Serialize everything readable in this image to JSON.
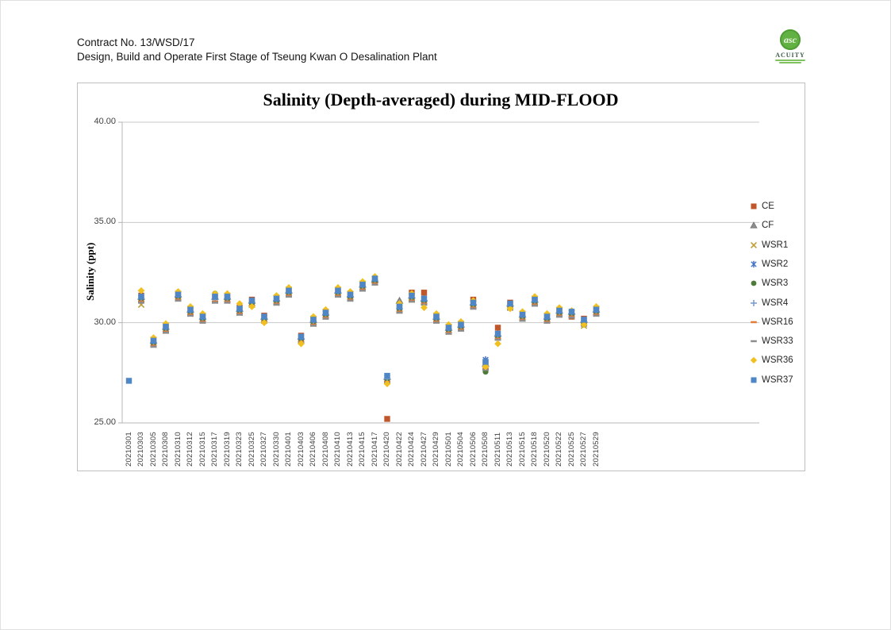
{
  "header": {
    "contract_line": "Contract No. 13/WSD/17",
    "project_line": "Design, Build and Operate First Stage of Tseung Kwan O Desalination Plant"
  },
  "logo": {
    "brand": "ACUITY",
    "monogram": "asc",
    "brand_color": "#62b143"
  },
  "chart_data": {
    "type": "scatter",
    "title": "Salinity (Depth-averaged) during MID-FLOOD",
    "ylabel": "Salinity (ppt)",
    "ylim": [
      25,
      40
    ],
    "yticks": [
      40,
      35,
      30,
      25
    ],
    "ytick_labels": [
      "40.00",
      "35.00",
      "30.00",
      "25.00"
    ],
    "grid": "horizontal",
    "legend_position": "right",
    "categories": [
      "20210301",
      "20210303",
      "20210305",
      "20210308",
      "20210310",
      "20210312",
      "20210315",
      "20210317",
      "20210319",
      "20210323",
      "20210325",
      "20210327",
      "20210330",
      "20210401",
      "20210403",
      "20210406",
      "20210408",
      "20210410",
      "20210413",
      "20210415",
      "20210417",
      "20210420",
      "20210422",
      "20210424",
      "20210427",
      "20210429",
      "20210501",
      "20210504",
      "20210506",
      "20210508",
      "20210511",
      "20210513",
      "20210515",
      "20210518",
      "20210520",
      "20210522",
      "20210525",
      "20210527",
      "20210529"
    ],
    "series": [
      {
        "name": "CE",
        "marker": "square",
        "color": "#c0572b",
        "values": [
          null,
          31.35,
          29.15,
          29.85,
          31.45,
          30.7,
          30.35,
          31.35,
          31.35,
          30.75,
          31.15,
          30.35,
          31.25,
          31.65,
          29.35,
          30.2,
          30.55,
          31.65,
          31.45,
          31.95,
          32.1,
          25.2,
          30.85,
          31.5,
          31.5,
          30.35,
          29.8,
          29.95,
          31.15,
          28.0,
          29.75,
          31.0,
          30.45,
          31.2,
          30.35,
          30.65,
          30.3,
          30.2,
          30.7
        ]
      },
      {
        "name": "CF",
        "marker": "triangle",
        "color": "#8c8c8c",
        "values": [
          null,
          31.3,
          29.1,
          29.8,
          31.4,
          30.65,
          30.3,
          31.3,
          31.3,
          30.7,
          31.1,
          30.3,
          31.2,
          31.6,
          29.3,
          30.15,
          30.5,
          31.6,
          31.4,
          31.9,
          32.15,
          27.3,
          31.1,
          31.35,
          31.2,
          30.3,
          29.75,
          29.9,
          31.0,
          27.95,
          29.45,
          30.95,
          30.4,
          31.15,
          30.3,
          30.6,
          30.55,
          30.15,
          30.65
        ]
      },
      {
        "name": "WSR1",
        "marker": "x",
        "color": "#bd9e39",
        "values": [
          null,
          30.9,
          28.9,
          29.6,
          31.2,
          30.45,
          30.1,
          31.1,
          31.1,
          30.5,
          30.9,
          30.1,
          31.0,
          31.4,
          29.1,
          29.95,
          30.3,
          31.4,
          31.2,
          31.7,
          32.0,
          27.1,
          30.6,
          31.15,
          31.0,
          30.1,
          29.55,
          29.7,
          30.8,
          27.75,
          29.25,
          30.75,
          30.2,
          30.95,
          30.1,
          30.4,
          30.35,
          29.85,
          30.45
        ]
      },
      {
        "name": "WSR2",
        "marker": "star",
        "color": "#4472c4",
        "values": [
          null,
          31.25,
          29.05,
          29.75,
          31.35,
          30.6,
          30.25,
          31.25,
          31.25,
          30.65,
          31.05,
          30.25,
          31.15,
          31.55,
          29.25,
          30.1,
          30.45,
          31.55,
          31.35,
          31.85,
          32.15,
          27.25,
          30.75,
          31.3,
          31.15,
          30.25,
          29.7,
          29.85,
          30.95,
          28.15,
          29.4,
          30.9,
          30.35,
          31.1,
          30.25,
          30.55,
          30.5,
          30.1,
          30.6
        ]
      },
      {
        "name": "WSR3",
        "marker": "circle",
        "color": "#4e7b3a",
        "values": [
          null,
          31.15,
          28.95,
          29.65,
          31.25,
          30.5,
          30.15,
          31.45,
          31.15,
          30.55,
          30.95,
          30.15,
          31.05,
          31.45,
          29.15,
          30.0,
          30.35,
          31.45,
          31.25,
          31.75,
          32.05,
          27.15,
          30.65,
          31.2,
          31.05,
          30.15,
          29.6,
          29.75,
          30.85,
          27.55,
          29.3,
          30.8,
          30.25,
          31.0,
          30.15,
          30.45,
          30.4,
          29.9,
          30.5
        ]
      },
      {
        "name": "WSR4",
        "marker": "plus",
        "color": "#7c9cd0",
        "values": [
          null,
          31.2,
          29.0,
          29.7,
          31.3,
          30.55,
          30.2,
          31.2,
          31.2,
          30.6,
          31.0,
          30.2,
          31.1,
          31.5,
          29.2,
          30.05,
          30.4,
          31.5,
          31.3,
          31.8,
          32.1,
          27.2,
          30.7,
          31.25,
          31.1,
          30.2,
          29.65,
          29.8,
          30.9,
          27.85,
          29.35,
          30.85,
          30.3,
          31.05,
          30.2,
          30.5,
          30.45,
          30.05,
          30.55
        ]
      },
      {
        "name": "WSR16",
        "marker": "dash",
        "color": "#e07b39",
        "values": [
          null,
          31.05,
          28.85,
          29.55,
          31.15,
          30.4,
          30.05,
          31.05,
          31.05,
          30.45,
          30.85,
          30.05,
          30.95,
          31.35,
          29.05,
          29.9,
          30.25,
          31.35,
          31.15,
          31.65,
          31.95,
          27.05,
          30.55,
          31.1,
          30.95,
          30.05,
          29.5,
          29.65,
          30.75,
          27.7,
          29.2,
          30.7,
          30.15,
          30.9,
          30.05,
          30.35,
          30.3,
          29.9,
          30.4
        ]
      },
      {
        "name": "WSR33",
        "marker": "dash",
        "color": "#8c8c8c",
        "values": [
          null,
          31.0,
          28.8,
          29.5,
          31.1,
          30.35,
          30.0,
          31.0,
          31.0,
          30.4,
          30.8,
          30.0,
          30.9,
          31.3,
          29.0,
          29.85,
          30.2,
          31.3,
          31.1,
          31.6,
          31.9,
          27.0,
          30.5,
          31.05,
          30.9,
          30.0,
          29.45,
          29.6,
          30.7,
          27.65,
          29.15,
          30.65,
          30.1,
          30.85,
          30.0,
          30.3,
          30.25,
          29.85,
          30.35
        ]
      },
      {
        "name": "WSR36",
        "marker": "diamond",
        "color": "#f0c020",
        "values": [
          null,
          31.6,
          29.25,
          29.95,
          31.55,
          30.8,
          30.45,
          31.45,
          31.45,
          30.95,
          30.8,
          30.0,
          31.35,
          31.75,
          28.95,
          30.3,
          30.65,
          31.75,
          31.55,
          32.05,
          32.3,
          26.95,
          30.95,
          31.45,
          30.75,
          30.45,
          29.9,
          30.05,
          31.1,
          27.8,
          28.95,
          30.7,
          30.55,
          31.3,
          30.45,
          30.75,
          30.6,
          29.9,
          30.8
        ]
      },
      {
        "name": "WSR37",
        "marker": "square",
        "color": "#4f86c6",
        "values": [
          27.1,
          31.3,
          29.1,
          29.8,
          31.4,
          30.65,
          30.3,
          31.3,
          31.3,
          30.7,
          31.1,
          30.3,
          31.2,
          31.6,
          29.3,
          30.15,
          30.5,
          31.6,
          31.4,
          31.9,
          32.2,
          27.35,
          30.8,
          31.35,
          31.2,
          30.3,
          29.75,
          29.9,
          31.0,
          28.05,
          29.45,
          30.95,
          30.4,
          31.15,
          30.3,
          30.6,
          30.55,
          30.15,
          30.65
        ]
      }
    ]
  }
}
